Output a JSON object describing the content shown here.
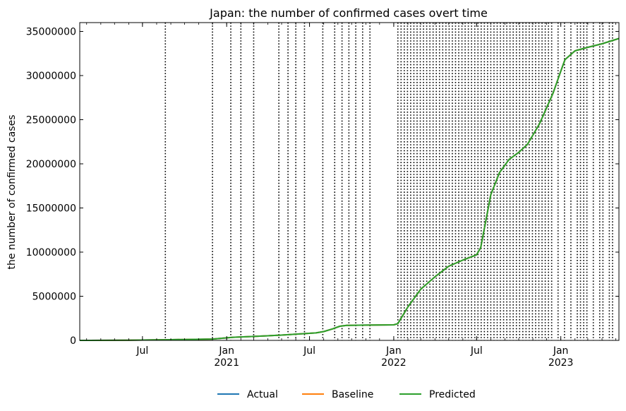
{
  "chart_data": {
    "type": "line",
    "title": "Japan: the number of confirmed cases overt time",
    "xlabel": "",
    "ylabel": "the number of confirmed cases",
    "x_range": [
      "2020-02-15",
      "2023-05-08"
    ],
    "ylim": [
      0,
      36000000
    ],
    "y_ticks": [
      0,
      5000000,
      10000000,
      15000000,
      20000000,
      25000000,
      30000000,
      35000000
    ],
    "y_tick_labels": [
      "0",
      "5000000",
      "10000000",
      "15000000",
      "20000000",
      "25000000",
      "30000000",
      "35000000"
    ],
    "x_ticks": [
      {
        "date": "2020-07-01",
        "label": "Jul",
        "sublabel": ""
      },
      {
        "date": "2021-01-01",
        "label": "Jan",
        "sublabel": "2021"
      },
      {
        "date": "2021-07-01",
        "label": "Jul",
        "sublabel": ""
      },
      {
        "date": "2022-01-01",
        "label": "Jan",
        "sublabel": "2022"
      },
      {
        "date": "2022-07-01",
        "label": "Jul",
        "sublabel": ""
      },
      {
        "date": "2023-01-01",
        "label": "Jan",
        "sublabel": "2023"
      }
    ],
    "grid": false,
    "legend_position": "bottom-center",
    "colors": {
      "Actual": "#1f77b4",
      "Baseline": "#ff7f0e",
      "Predicted": "#2ca02c"
    },
    "x": [
      "2020-02-15",
      "2020-06-01",
      "2020-09-01",
      "2020-12-01",
      "2021-01-15",
      "2021-03-01",
      "2021-05-01",
      "2021-06-15",
      "2021-07-15",
      "2021-08-01",
      "2021-08-20",
      "2021-09-05",
      "2021-09-20",
      "2021-11-01",
      "2022-01-01",
      "2022-01-10",
      "2022-02-01",
      "2022-03-01",
      "2022-04-01",
      "2022-05-01",
      "2022-06-01",
      "2022-07-01",
      "2022-07-10",
      "2022-08-01",
      "2022-08-20",
      "2022-09-10",
      "2022-10-01",
      "2022-10-20",
      "2022-11-15",
      "2022-12-15",
      "2023-01-01",
      "2023-01-10",
      "2023-02-01",
      "2023-03-01",
      "2023-04-01",
      "2023-05-08"
    ],
    "series": [
      {
        "name": "Actual",
        "values": [
          0,
          20000,
          80000,
          150000,
          350000,
          450000,
          600000,
          750000,
          850000,
          1000000,
          1300000,
          1600000,
          1700000,
          1730000,
          1760000,
          1900000,
          3800000,
          5800000,
          7200000,
          8400000,
          9100000,
          9700000,
          10500000,
          16500000,
          19000000,
          20500000,
          21300000,
          22200000,
          24500000,
          28000000,
          30500000,
          31800000,
          32800000,
          33200000,
          33600000,
          34200000
        ]
      },
      {
        "name": "Baseline",
        "values": [
          0,
          20000,
          80000,
          150000,
          350000,
          450000,
          600000,
          750000,
          850000,
          1000000,
          1300000,
          1600000,
          1700000,
          1730000,
          1760000,
          1900000,
          3800000,
          5800000,
          7200000,
          8400000,
          9100000,
          9700000,
          10500000,
          16500000,
          19000000,
          20500000,
          21300000,
          22200000,
          24500000,
          28000000,
          30500000,
          31800000,
          32800000,
          33200000,
          33600000,
          34200000
        ]
      },
      {
        "name": "Predicted",
        "values": [
          0,
          20000,
          80000,
          150000,
          350000,
          450000,
          600000,
          750000,
          850000,
          1000000,
          1300000,
          1600000,
          1700000,
          1730000,
          1760000,
          1900000,
          3800000,
          5800000,
          7200000,
          8400000,
          9100000,
          9700000,
          10500000,
          16500000,
          19000000,
          20500000,
          21300000,
          22200000,
          24500000,
          28000000,
          30500000,
          31800000,
          32800000,
          33200000,
          33600000,
          34200000
        ]
      }
    ],
    "vertical_markers": [
      "2020-08-20",
      "2020-12-01",
      "2021-01-10",
      "2021-02-01",
      "2021-03-01",
      "2021-04-25",
      "2021-05-15",
      "2021-06-01",
      "2021-06-20",
      "2021-07-30",
      "2021-08-25",
      "2021-09-10",
      "2021-09-25",
      "2021-10-10",
      "2021-10-25",
      "2021-11-10",
      "2022-01-10",
      "2022-01-17",
      "2022-01-24",
      "2022-01-31",
      "2022-02-07",
      "2022-02-14",
      "2022-02-21",
      "2022-02-28",
      "2022-03-07",
      "2022-03-14",
      "2022-03-21",
      "2022-03-28",
      "2022-04-04",
      "2022-04-11",
      "2022-04-18",
      "2022-04-25",
      "2022-05-02",
      "2022-05-09",
      "2022-05-16",
      "2022-05-23",
      "2022-05-30",
      "2022-06-06",
      "2022-06-13",
      "2022-06-20",
      "2022-06-27",
      "2022-07-04",
      "2022-07-11",
      "2022-07-18",
      "2022-07-25",
      "2022-08-01",
      "2022-08-08",
      "2022-08-15",
      "2022-08-22",
      "2022-08-29",
      "2022-09-05",
      "2022-09-12",
      "2022-09-19",
      "2022-09-26",
      "2022-10-03",
      "2022-10-10",
      "2022-10-17",
      "2022-10-24",
      "2022-10-31",
      "2022-11-07",
      "2022-11-14",
      "2022-11-21",
      "2022-11-28",
      "2022-12-05",
      "2022-12-12",
      "2022-12-26",
      "2023-01-09",
      "2023-01-23",
      "2023-02-06",
      "2023-02-13",
      "2023-02-20",
      "2023-02-27",
      "2023-03-13",
      "2023-03-27",
      "2023-04-03",
      "2023-04-17",
      "2023-04-24"
    ]
  }
}
